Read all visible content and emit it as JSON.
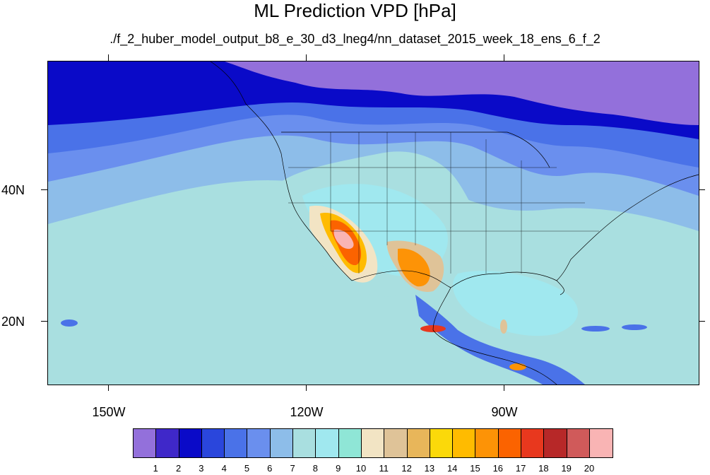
{
  "title": "ML Prediction VPD [hPa]",
  "subtitle": "./f_2_huber_model_output_b8_e_30_d3_lneg4/nn_dataset_2015_week_18_ens_6_f_2",
  "map": {
    "lat_labels": [
      "40N",
      "20N"
    ],
    "lon_labels": [
      "150W",
      "120W",
      "90W"
    ]
  },
  "colorbar": {
    "colors": [
      "#9370db",
      "#3f28c9",
      "#0a0ac8",
      "#2a46dc",
      "#4a72e8",
      "#6a8fee",
      "#8dbde9",
      "#a9dfe0",
      "#a0e8ef",
      "#8fe6d6",
      "#f2e4c4",
      "#dfc398",
      "#e8b65a",
      "#fbd90a",
      "#ffbb00",
      "#fd9306",
      "#fb6300",
      "#e8381e",
      "#b72828",
      "#d05a5a",
      "#f9b4b4"
    ],
    "labels": [
      "1",
      "2",
      "3",
      "4",
      "5",
      "6",
      "7",
      "8",
      "9",
      "10",
      "11",
      "12",
      "13",
      "14",
      "15",
      "16",
      "17",
      "18",
      "19",
      "20"
    ]
  }
}
